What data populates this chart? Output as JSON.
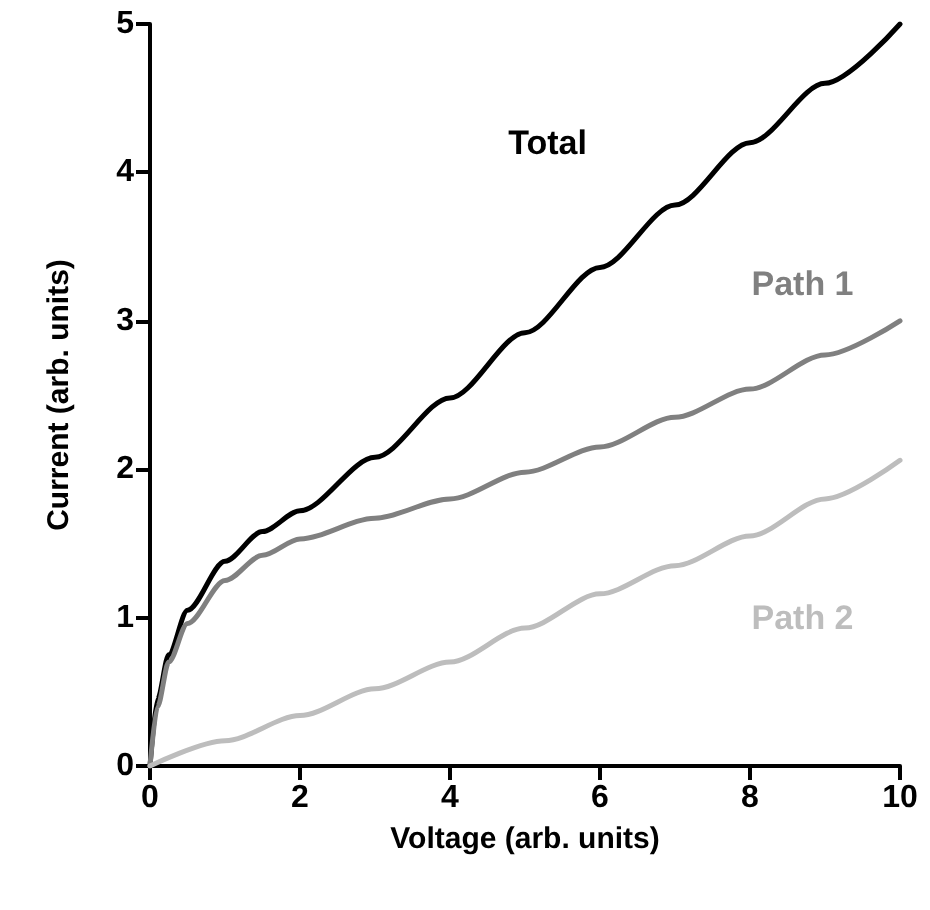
{
  "chart_data": {
    "type": "line",
    "xlabel": "Voltage (arb. units)",
    "ylabel": "Current (arb. units)",
    "xlim": [
      0,
      10
    ],
    "xticks": [
      0,
      2,
      4,
      6,
      8,
      10
    ],
    "ylim": [
      0,
      5
    ],
    "yticks": [
      0,
      1,
      2,
      3,
      4,
      5
    ],
    "grid": false,
    "legend": false,
    "marker": "none",
    "line_style": "solid",
    "series": [
      {
        "name": "Total",
        "color": "#000000",
        "x": [
          0,
          0.1,
          0.25,
          0.5,
          1,
          1.5,
          2,
          3,
          4,
          5,
          6,
          7,
          8,
          9,
          10
        ],
        "values": [
          0,
          0.45,
          0.75,
          1.05,
          1.38,
          1.58,
          1.72,
          2.08,
          2.48,
          2.92,
          3.36,
          3.78,
          4.2,
          4.6,
          5.0
        ]
      },
      {
        "name": "Path 1",
        "color": "#808080",
        "x": [
          0,
          0.1,
          0.25,
          0.5,
          1,
          1.5,
          2,
          3,
          4,
          5,
          6,
          7,
          8,
          9,
          10
        ],
        "values": [
          0,
          0.4,
          0.7,
          0.96,
          1.25,
          1.42,
          1.53,
          1.67,
          1.8,
          1.98,
          2.15,
          2.35,
          2.54,
          2.77,
          3.0
        ]
      },
      {
        "name": "Path 2",
        "color": "#bdbdbd",
        "x": [
          0,
          1,
          2,
          3,
          4,
          5,
          6,
          7,
          8,
          9,
          10
        ],
        "values": [
          0,
          0.17,
          0.34,
          0.52,
          0.7,
          0.93,
          1.16,
          1.35,
          1.55,
          1.8,
          2.06
        ]
      }
    ]
  }
}
